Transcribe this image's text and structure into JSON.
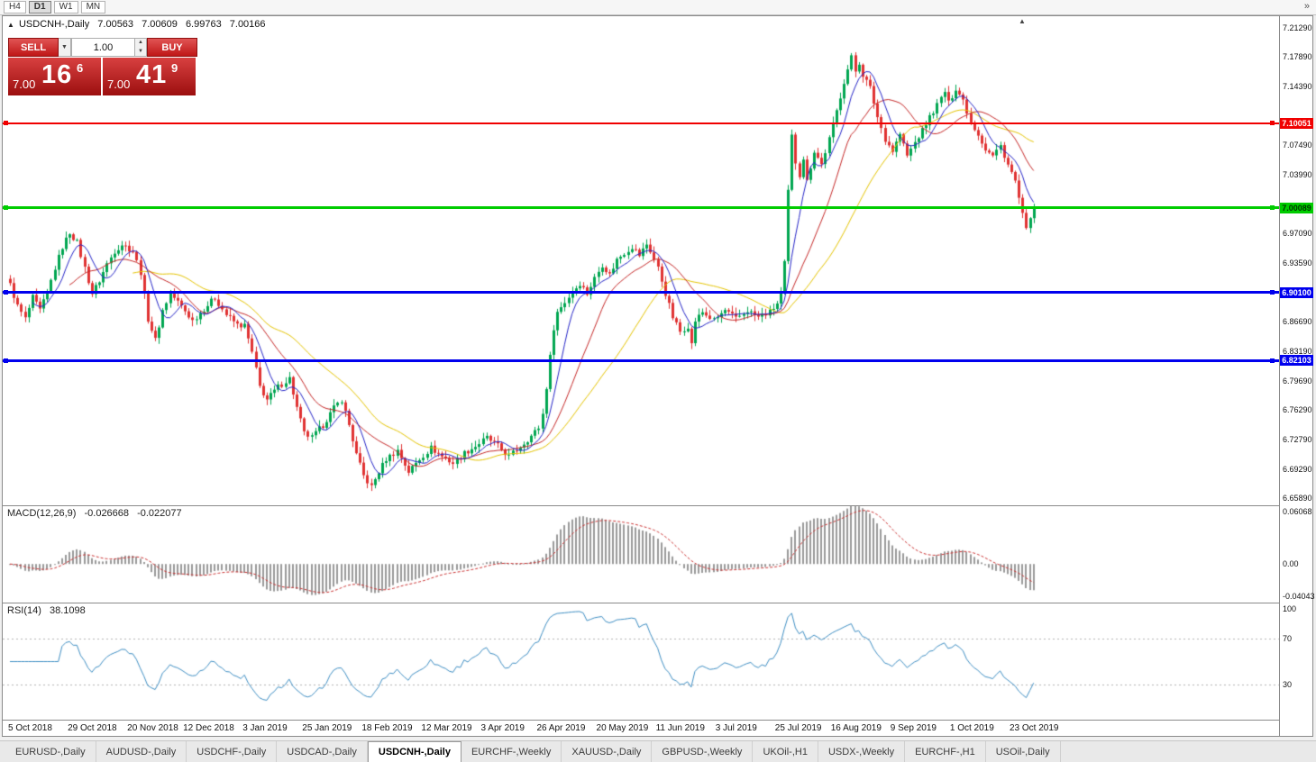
{
  "icons": {
    "triangle_up": "▲",
    "dropdown": "▼",
    "spin_up": "▲",
    "spin_down": "▼",
    "overflow": "»"
  },
  "toolbar": {
    "timeframes": [
      {
        "label": "H4",
        "active": false
      },
      {
        "label": "D1",
        "active": true
      },
      {
        "label": "W1",
        "active": false
      },
      {
        "label": "MN",
        "active": false
      }
    ]
  },
  "chart": {
    "title": {
      "symbol": "USDCNH-,Daily",
      "open": "7.00563",
      "high": "7.00609",
      "low": "6.99763",
      "close": "7.00166"
    }
  },
  "one_click": {
    "sell_label": "SELL",
    "buy_label": "BUY",
    "volume": "1.00",
    "sell_price": {
      "main": "7.00",
      "pips": "16",
      "frac": "6"
    },
    "buy_price": {
      "main": "7.00",
      "pips": "41",
      "frac": "9"
    }
  },
  "price_scale": {
    "labels": [
      {
        "text": "7.21290",
        "price": 7.2129
      },
      {
        "text": "7.17890",
        "price": 7.1789
      },
      {
        "text": "7.14390",
        "price": 7.1439
      },
      {
        "text": "7.07490",
        "price": 7.0749
      },
      {
        "text": "7.03990",
        "price": 7.0399
      },
      {
        "text": "6.97090",
        "price": 6.9709
      },
      {
        "text": "6.93590",
        "price": 6.9359
      },
      {
        "text": "6.86690",
        "price": 6.8669
      },
      {
        "text": "6.83190",
        "price": 6.8319
      },
      {
        "text": "6.79690",
        "price": 6.7969
      },
      {
        "text": "6.76290",
        "price": 6.7629
      },
      {
        "text": "6.72790",
        "price": 6.7279
      },
      {
        "text": "6.69290",
        "price": 6.6929
      },
      {
        "text": "6.65890",
        "price": 6.6589
      }
    ]
  },
  "hlines": [
    {
      "text": "7.10051",
      "price": 7.10051,
      "color": "#f00000",
      "tag_text_color": "#ffffff",
      "thickness": 2
    },
    {
      "text": "7.00089",
      "price": 7.00089,
      "color": "#00cc00",
      "tag_text_color": "#003300",
      "thickness": 3
    },
    {
      "text": "6.90100",
      "price": 6.901,
      "color": "#0000ee",
      "tag_text_color": "#ffffff",
      "thickness": 3
    },
    {
      "text": "6.82103",
      "price": 6.82103,
      "color": "#0000ee",
      "tag_text_color": "#ffffff",
      "thickness": 3
    }
  ],
  "panes": {
    "macd": {
      "name": "MACD(12,26,9)",
      "value_main": "-0.026668",
      "value_signal": "-0.022077",
      "scale": [
        {
          "text": "0.06068",
          "v": 0.06068
        },
        {
          "text": "0.00",
          "v": 0
        },
        {
          "text": "-0.04043",
          "v": -0.04043
        }
      ]
    },
    "rsi": {
      "name": "RSI(14)",
      "value": "38.1098",
      "scale": [
        {
          "text": "100",
          "v": 100
        },
        {
          "text": "70",
          "v": 70
        },
        {
          "text": "30",
          "v": 30
        }
      ]
    }
  },
  "time_axis": {
    "labels": [
      {
        "text": "5 Oct 2018",
        "bar": 0
      },
      {
        "text": "29 Oct 2018",
        "bar": 16
      },
      {
        "text": "20 Nov 2018",
        "bar": 32
      },
      {
        "text": "12 Dec 2018",
        "bar": 47
      },
      {
        "text": "3 Jan 2019",
        "bar": 63
      },
      {
        "text": "25 Jan 2019",
        "bar": 79
      },
      {
        "text": "18 Feb 2019",
        "bar": 95
      },
      {
        "text": "12 Mar 2019",
        "bar": 111
      },
      {
        "text": "3 Apr 2019",
        "bar": 127
      },
      {
        "text": "26 Apr 2019",
        "bar": 142
      },
      {
        "text": "20 May 2019",
        "bar": 158
      },
      {
        "text": "11 Jun 2019",
        "bar": 174
      },
      {
        "text": "3 Jul 2019",
        "bar": 190
      },
      {
        "text": "25 Jul 2019",
        "bar": 206
      },
      {
        "text": "16 Aug 2019",
        "bar": 221
      },
      {
        "text": "9 Sep 2019",
        "bar": 237
      },
      {
        "text": "1 Oct 2019",
        "bar": 253
      },
      {
        "text": "23 Oct 2019",
        "bar": 269
      }
    ]
  },
  "tabs": [
    {
      "label": "EURUSD-,Daily",
      "active": false
    },
    {
      "label": "AUDUSD-,Daily",
      "active": false
    },
    {
      "label": "USDCHF-,Daily",
      "active": false
    },
    {
      "label": "USDCAD-,Daily",
      "active": false
    },
    {
      "label": "USDCNH-,Daily",
      "active": true
    },
    {
      "label": "EURCHF-,Weekly",
      "active": false
    },
    {
      "label": "XAUUSD-,Daily",
      "active": false
    },
    {
      "label": "GBPUSD-,Weekly",
      "active": false
    },
    {
      "label": "UKOil-,H1",
      "active": false
    },
    {
      "label": "USDX-,Weekly",
      "active": false
    },
    {
      "label": "EURCHF-,H1",
      "active": false
    },
    {
      "label": "USOil-,Daily",
      "active": false
    }
  ],
  "chart_data": {
    "type": "candlestick",
    "symbol": "USDCNH",
    "timeframe": "Daily",
    "bars": 276,
    "axis_range": [
      6.6504,
      7.2267
    ],
    "current_ohlc": {
      "open": 7.00563,
      "high": 7.00609,
      "low": 6.99763,
      "close": 7.00166
    },
    "levels": [
      7.10051,
      7.00089,
      6.901,
      6.82103
    ],
    "colors": {
      "up": "#00a651",
      "down": "#e03232",
      "background": "#ffffff"
    },
    "price_path": [
      [
        0,
        6.91
      ],
      [
        2,
        6.885
      ],
      [
        4,
        6.87
      ],
      [
        6,
        6.895
      ],
      [
        8,
        6.88
      ],
      [
        10,
        6.9
      ],
      [
        12,
        6.93
      ],
      [
        14,
        6.955
      ],
      [
        16,
        6.972
      ],
      [
        18,
        6.96
      ],
      [
        20,
        6.93
      ],
      [
        22,
        6.9
      ],
      [
        24,
        6.915
      ],
      [
        26,
        6.935
      ],
      [
        28,
        6.95
      ],
      [
        30,
        6.958
      ],
      [
        33,
        6.95
      ],
      [
        35,
        6.925
      ],
      [
        37,
        6.87
      ],
      [
        39,
        6.845
      ],
      [
        41,
        6.88
      ],
      [
        43,
        6.9
      ],
      [
        46,
        6.885
      ],
      [
        49,
        6.868
      ],
      [
        52,
        6.882
      ],
      [
        55,
        6.895
      ],
      [
        58,
        6.875
      ],
      [
        61,
        6.863
      ],
      [
        63,
        6.862
      ],
      [
        65,
        6.83
      ],
      [
        67,
        6.79
      ],
      [
        69,
        6.775
      ],
      [
        72,
        6.79
      ],
      [
        75,
        6.8
      ],
      [
        77,
        6.765
      ],
      [
        79,
        6.735
      ],
      [
        81,
        6.73
      ],
      [
        84,
        6.745
      ],
      [
        87,
        6.765
      ],
      [
        89,
        6.775
      ],
      [
        91,
        6.745
      ],
      [
        93,
        6.71
      ],
      [
        95,
        6.685
      ],
      [
        97,
        6.672
      ],
      [
        99,
        6.69
      ],
      [
        101,
        6.705
      ],
      [
        104,
        6.715
      ],
      [
        107,
        6.69
      ],
      [
        110,
        6.705
      ],
      [
        113,
        6.718
      ],
      [
        116,
        6.708
      ],
      [
        119,
        6.7
      ],
      [
        122,
        6.712
      ],
      [
        125,
        6.72
      ],
      [
        128,
        6.73
      ],
      [
        131,
        6.72
      ],
      [
        134,
        6.708
      ],
      [
        137,
        6.72
      ],
      [
        140,
        6.732
      ],
      [
        142,
        6.742
      ],
      [
        143,
        6.758
      ],
      [
        144,
        6.79
      ],
      [
        145,
        6.825
      ],
      [
        146,
        6.86
      ],
      [
        147,
        6.878
      ],
      [
        149,
        6.89
      ],
      [
        151,
        6.902
      ],
      [
        153,
        6.912
      ],
      [
        155,
        6.9
      ],
      [
        157,
        6.918
      ],
      [
        159,
        6.934
      ],
      [
        161,
        6.922
      ],
      [
        163,
        6.94
      ],
      [
        165,
        6.948
      ],
      [
        167,
        6.955
      ],
      [
        169,
        6.945
      ],
      [
        171,
        6.958
      ],
      [
        172,
        6.95
      ],
      [
        174,
        6.93
      ],
      [
        176,
        6.9
      ],
      [
        178,
        6.872
      ],
      [
        180,
        6.855
      ],
      [
        182,
        6.862
      ],
      [
        183,
        6.84
      ],
      [
        184,
        6.868
      ],
      [
        186,
        6.878
      ],
      [
        189,
        6.868
      ],
      [
        192,
        6.88
      ],
      [
        195,
        6.87
      ],
      [
        198,
        6.88
      ],
      [
        201,
        6.872
      ],
      [
        204,
        6.878
      ],
      [
        206,
        6.888
      ],
      [
        207,
        6.9
      ],
      [
        208,
        6.935
      ],
      [
        209,
        7.02
      ],
      [
        210,
        7.085
      ],
      [
        211,
        7.055
      ],
      [
        212,
        7.04
      ],
      [
        213,
        7.06
      ],
      [
        214,
        7.032
      ],
      [
        215,
        7.05
      ],
      [
        216,
        7.068
      ],
      [
        218,
        7.052
      ],
      [
        220,
        7.082
      ],
      [
        222,
        7.115
      ],
      [
        224,
        7.15
      ],
      [
        226,
        7.178
      ],
      [
        227,
        7.162
      ],
      [
        228,
        7.172
      ],
      [
        229,
        7.158
      ],
      [
        231,
        7.142
      ],
      [
        233,
        7.108
      ],
      [
        235,
        7.082
      ],
      [
        237,
        7.068
      ],
      [
        239,
        7.088
      ],
      [
        241,
        7.062
      ],
      [
        243,
        7.078
      ],
      [
        245,
        7.092
      ],
      [
        247,
        7.108
      ],
      [
        249,
        7.122
      ],
      [
        251,
        7.138
      ],
      [
        252,
        7.124
      ],
      [
        254,
        7.142
      ],
      [
        256,
        7.128
      ],
      [
        258,
        7.102
      ],
      [
        260,
        7.088
      ],
      [
        262,
        7.07
      ],
      [
        264,
        7.062
      ],
      [
        266,
        7.074
      ],
      [
        268,
        7.052
      ],
      [
        270,
        7.032
      ],
      [
        271,
        7.012
      ],
      [
        272,
        6.992
      ],
      [
        273,
        6.974
      ],
      [
        274,
        6.992
      ],
      [
        275,
        7.0017
      ]
    ],
    "indicators": {
      "moving_averages": [
        {
          "period": 34,
          "color": "#e5c400"
        },
        {
          "period": 17,
          "color": "#c62828"
        },
        {
          "period": 7,
          "color": "#2525c8"
        }
      ],
      "macd": {
        "fast": 12,
        "slow": 26,
        "signal": 9,
        "current_main": -0.026668,
        "current_signal": -0.022077,
        "range": [
          -0.04043,
          0.06068
        ],
        "histogram_color": "#9a9a9a",
        "signal_color": "#cc3333"
      },
      "rsi": {
        "period": 14,
        "current": 38.1098,
        "range": [
          0,
          100
        ],
        "levels": [
          70,
          30
        ],
        "line_color": "#3f8fc4",
        "level_color": "#b5b5b5"
      }
    }
  }
}
